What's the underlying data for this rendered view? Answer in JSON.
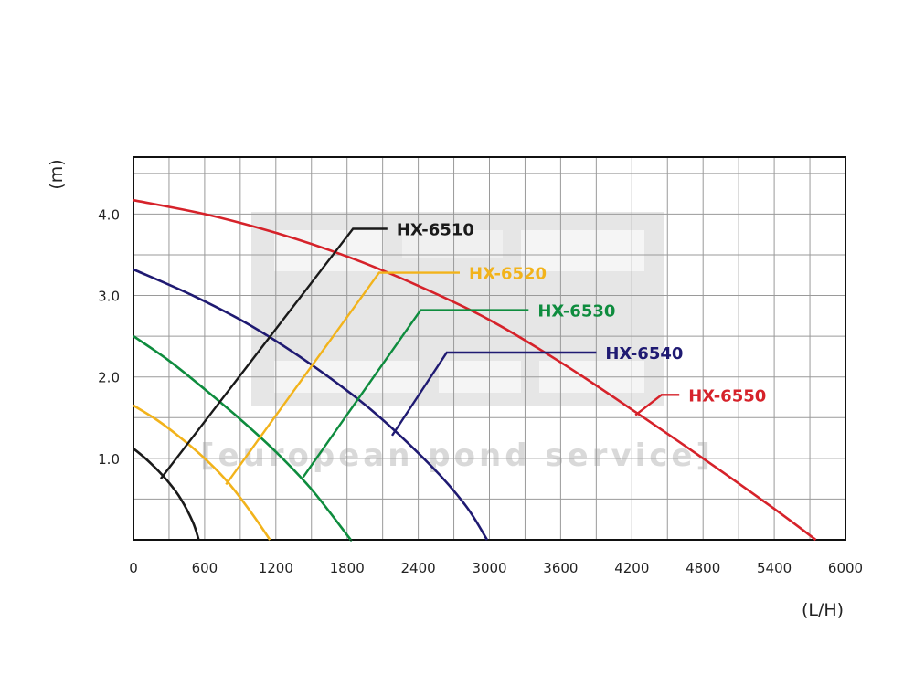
{
  "chart_data": {
    "type": "line",
    "title": "",
    "xlabel": "(L/H)",
    "ylabel": "(m)",
    "xlim": [
      0,
      6000
    ],
    "ylim": [
      0,
      4.7
    ],
    "grid": true,
    "legend_placement": "inline-callouts",
    "x_ticks": [
      "0",
      "600",
      "1200",
      "1800",
      "2400",
      "3000",
      "3600",
      "4200",
      "4800",
      "5400",
      "6000"
    ],
    "y_ticks": [
      "1.0",
      "2.0",
      "3.0",
      "4.0"
    ],
    "watermark": "[european pond service]",
    "series": [
      {
        "name": "HX-6510",
        "color": "#1a1a1a",
        "x": [
          0,
          100,
          200,
          300,
          400,
          500,
          550
        ],
        "y": [
          1.12,
          1.0,
          0.86,
          0.7,
          0.5,
          0.22,
          0.0
        ]
      },
      {
        "name": "HX-6520",
        "color": "#f2b31b",
        "x": [
          0,
          200,
          400,
          600,
          800,
          1000,
          1150
        ],
        "y": [
          1.65,
          1.47,
          1.25,
          1.0,
          0.7,
          0.32,
          0.0
        ]
      },
      {
        "name": "HX-6530",
        "color": "#0e8c3e",
        "x": [
          0,
          300,
          600,
          900,
          1200,
          1500,
          1800,
          1830
        ],
        "y": [
          2.5,
          2.2,
          1.85,
          1.48,
          1.08,
          0.62,
          0.06,
          0.0
        ]
      },
      {
        "name": "HX-6540",
        "color": "#1f1a72",
        "x": [
          0,
          500,
          1000,
          1500,
          2000,
          2500,
          2800,
          2980
        ],
        "y": [
          3.32,
          3.0,
          2.62,
          2.15,
          1.6,
          0.92,
          0.42,
          0.0
        ]
      },
      {
        "name": "HX-6550",
        "color": "#d6222a",
        "x": [
          0,
          600,
          1200,
          1800,
          2400,
          3000,
          3600,
          4200,
          4800,
          5400,
          5750
        ],
        "y": [
          4.17,
          4.0,
          3.77,
          3.48,
          3.12,
          2.7,
          2.18,
          1.6,
          1.0,
          0.38,
          0.0
        ]
      }
    ],
    "callouts": [
      {
        "series": "HX-6510",
        "anchor": [
          230,
          0.75
        ],
        "knee": [
          1850,
          3.82
        ],
        "end": [
          2140,
          3.82
        ]
      },
      {
        "series": "HX-6520",
        "anchor": [
          780,
          0.68
        ],
        "knee": [
          2070,
          3.28
        ],
        "end": [
          2750,
          3.28
        ]
      },
      {
        "series": "HX-6530",
        "anchor": [
          1430,
          0.77
        ],
        "knee": [
          2420,
          2.82
        ],
        "end": [
          3330,
          2.82
        ]
      },
      {
        "series": "HX-6540",
        "anchor": [
          2180,
          1.28
        ],
        "knee": [
          2640,
          2.3
        ],
        "end": [
          3900,
          2.3
        ]
      },
      {
        "series": "HX-6550",
        "anchor": [
          4230,
          1.53
        ],
        "knee": [
          4450,
          1.78
        ],
        "end": [
          4600,
          1.78
        ]
      }
    ]
  }
}
